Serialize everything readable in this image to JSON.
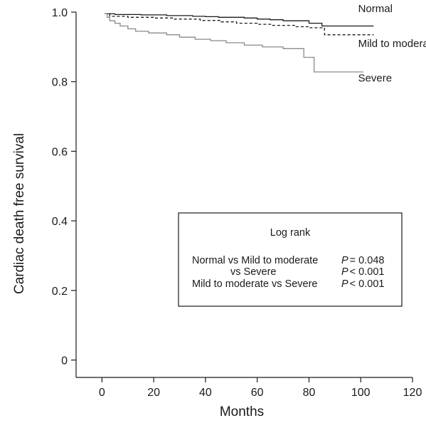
{
  "chart_data": {
    "type": "line",
    "step": true,
    "xlabel": "Months",
    "ylabel": "Cardiac death free survival",
    "xlim": [
      -10,
      120
    ],
    "ylim": [
      -0.05,
      1.0
    ],
    "xticks": [
      0,
      20,
      40,
      60,
      80,
      100,
      120
    ],
    "yticks": [
      0,
      0.2,
      0.4,
      0.6,
      0.8,
      1.0
    ],
    "xtick_labels": [
      "0",
      "20",
      "40",
      "60",
      "80",
      "100",
      "120"
    ],
    "ytick_labels": [
      "0",
      "0.2",
      "0.4",
      "0.6",
      "0.8",
      "1.0"
    ],
    "grid": false,
    "series": [
      {
        "name": "Normal",
        "color": "#1a1a1a",
        "dash": "solid",
        "x": [
          1,
          5,
          15,
          25,
          35,
          40,
          45,
          55,
          60,
          65,
          70,
          80,
          85,
          105
        ],
        "y": [
          0.995,
          0.993,
          0.992,
          0.99,
          0.988,
          0.987,
          0.985,
          0.983,
          0.98,
          0.978,
          0.975,
          0.968,
          0.96,
          0.96
        ]
      },
      {
        "name": "Mild to moderate",
        "color": "#1a1a1a",
        "dash": "dashed",
        "x": [
          1,
          3,
          10,
          20,
          28,
          38,
          46,
          52,
          60,
          66,
          75,
          80,
          86,
          105
        ],
        "y": [
          0.995,
          0.988,
          0.985,
          0.983,
          0.98,
          0.976,
          0.972,
          0.968,
          0.965,
          0.962,
          0.958,
          0.955,
          0.935,
          0.935
        ]
      },
      {
        "name": "Severe",
        "color": "#8a8a8a",
        "dash": "solid",
        "x": [
          1,
          2,
          3,
          5,
          7,
          10,
          13,
          18,
          25,
          30,
          36,
          42,
          48,
          55,
          62,
          70,
          78,
          82,
          101
        ],
        "y": [
          0.995,
          0.985,
          0.975,
          0.968,
          0.96,
          0.952,
          0.945,
          0.94,
          0.935,
          0.928,
          0.922,
          0.918,
          0.912,
          0.905,
          0.9,
          0.895,
          0.87,
          0.828,
          0.828
        ]
      }
    ],
    "series_labels": [
      {
        "text": "Normal",
        "x": 99,
        "y": 1.0
      },
      {
        "text": "Mild to moderate",
        "x": 99,
        "y": 0.9
      },
      {
        "text": "Severe",
        "x": 99,
        "y": 0.8
      }
    ],
    "annotation_box": {
      "title": "Log rank",
      "rows": [
        {
          "label": "Normal vs Mild to moderate",
          "p_symbol": "P",
          "p_value": "= 0.048"
        },
        {
          "label": "vs Severe",
          "p_symbol": "P",
          "p_value": "< 0.001"
        },
        {
          "label": "Mild to moderate vs Severe",
          "p_symbol": "P",
          "p_value": "< 0.001"
        }
      ]
    }
  }
}
